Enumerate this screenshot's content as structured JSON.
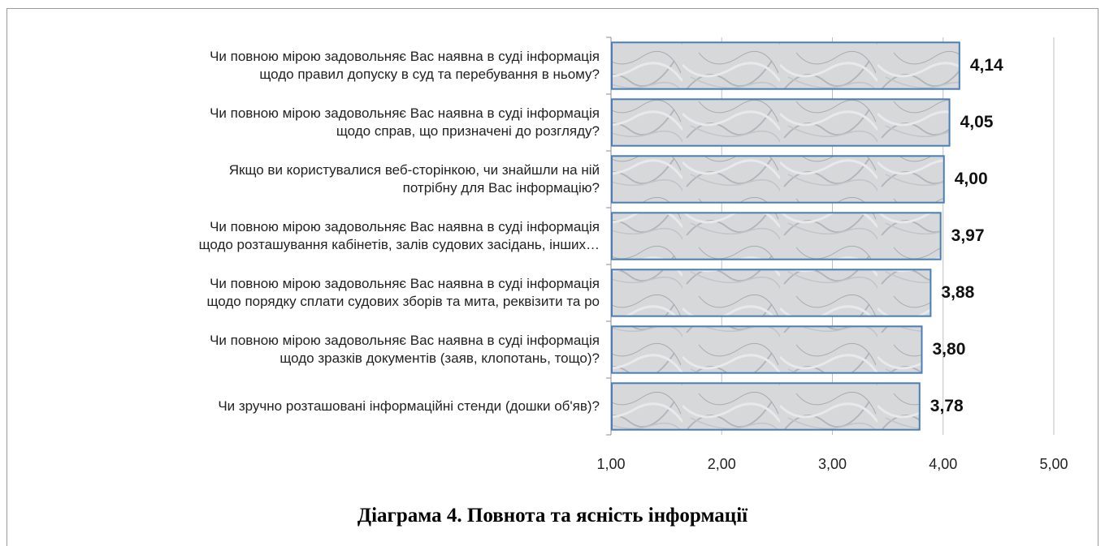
{
  "chart_data": {
    "type": "bar",
    "orientation": "horizontal",
    "title": "Діаграма 4. Повнота та ясність інформації",
    "categories": [
      [
        "Чи повною мірою задовольняє Вас наявна в суді інформація",
        "щодо правил допуску в суд та перебування в ньому?"
      ],
      [
        "Чи повною мірою задовольняє Вас наявна в суді інформація",
        "щодо справ, що призначені до розгляду?"
      ],
      [
        "Якщо ви користувалися веб-сторінкою, чи знайшли на ній",
        "потрібну для Вас інформацію?"
      ],
      [
        "Чи повною мірою задовольняє Вас наявна в суді інформація",
        "щодо розташування кабінетів, залів судових засідань, інших…"
      ],
      [
        "Чи повною мірою задовольняє Вас наявна в суді інформація",
        "щодо порядку сплати судових зборів та мита, реквізити та ро"
      ],
      [
        "Чи повною мірою задовольняє Вас наявна в суді інформація",
        "щодо зразків документів (заяв, клопотань, тощо)?"
      ],
      [
        "Чи зручно розташовані інформаційні стенди (дошки об'яв)?"
      ]
    ],
    "values": [
      4.14,
      4.05,
      4.0,
      3.97,
      3.88,
      3.8,
      3.78
    ],
    "value_labels": [
      "4,14",
      "4,05",
      "4,00",
      "3,97",
      "3,88",
      "3,80",
      "3,78"
    ],
    "xlim": [
      1.0,
      5.0
    ],
    "xticks": [
      1,
      2,
      3,
      4,
      5
    ],
    "xtick_labels": [
      "1,00",
      "2,00",
      "3,00",
      "4,00",
      "5,00"
    ],
    "grid": true,
    "legend": "none",
    "colors": {
      "bar_fill": "#d4d6d8",
      "bar_border": "#4a7ebb",
      "grid": "#bfbfbf"
    }
  }
}
